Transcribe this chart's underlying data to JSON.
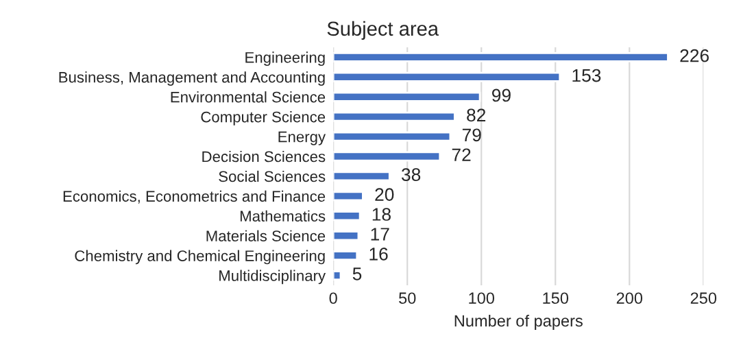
{
  "chart_data": {
    "type": "bar",
    "orientation": "horizontal",
    "title": "Subject area",
    "xlabel": "Number of papers",
    "categories": [
      "Engineering",
      "Business, Management and Accounting",
      "Environmental Science",
      "Computer Science",
      "Energy",
      "Decision Sciences",
      "Social Sciences",
      "Economics, Econometrics and Finance",
      "Mathematics",
      "Materials Science",
      "Chemistry and Chemical Engineering",
      "Multidisciplinary"
    ],
    "values": [
      226,
      153,
      99,
      82,
      79,
      72,
      38,
      20,
      18,
      17,
      16,
      5
    ],
    "color": "#4472c4",
    "xlim": [
      0,
      250
    ],
    "xticks": [
      0,
      50,
      100,
      150,
      200,
      250
    ],
    "grid": "x",
    "data_labels": true
  }
}
